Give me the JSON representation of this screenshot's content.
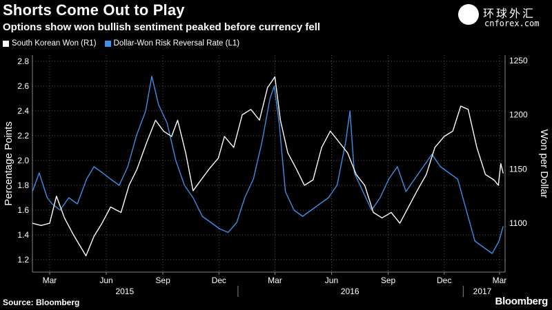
{
  "header": {
    "title": "Shorts Come Out to Play",
    "subtitle": "Options show won bullish sentiment peaked before currency fell"
  },
  "logo": {
    "chinese": "环球外汇",
    "english": "cnforex.com",
    "mark": ""
  },
  "footer": {
    "source": "Source: Bloomberg",
    "brand": "Bloomberg"
  },
  "colors": {
    "won": "#ffffff",
    "rr": "#3d8fe8",
    "grid": "#555555",
    "background": "#000000"
  },
  "chart_data": {
    "type": "line",
    "left_axis": {
      "label": "Percentage Points",
      "min": 1.1,
      "max": 2.85,
      "ticks": [
        1.2,
        1.4,
        1.6,
        1.8,
        2.0,
        2.2,
        2.4,
        2.6,
        2.8
      ],
      "tick_labels": [
        "1.2",
        "1.4",
        "1.6",
        "1.8",
        "2.0",
        "2.2",
        "2.4",
        "2.6",
        "2.8"
      ]
    },
    "right_axis": {
      "label": "Won per Dollar",
      "min": 1055,
      "max": 1255,
      "ticks": [
        1100,
        1150,
        1200,
        1250
      ],
      "tick_labels": [
        "1100",
        "1150",
        "1200",
        "1250"
      ]
    },
    "x_axis": {
      "start": "2015-02-01",
      "end": "2017-03-10",
      "month_ticks": [
        {
          "date": "2015-03-01",
          "label": "Mar"
        },
        {
          "date": "2015-06-01",
          "label": "Jun"
        },
        {
          "date": "2015-09-01",
          "label": "Sep"
        },
        {
          "date": "2015-12-01",
          "label": "Dec"
        },
        {
          "date": "2016-03-01",
          "label": "Mar"
        },
        {
          "date": "2016-06-01",
          "label": "Jun"
        },
        {
          "date": "2016-09-01",
          "label": "Sep"
        },
        {
          "date": "2016-12-01",
          "label": "Dec"
        },
        {
          "date": "2017-03-01",
          "label": "Mar"
        }
      ],
      "year_labels": [
        {
          "date": "2015-07-01",
          "label": "2015"
        },
        {
          "date": "2016-07-01",
          "label": "2016"
        },
        {
          "date": "2017-02-01",
          "label": "2017"
        }
      ],
      "year_dividers": [
        "2016-01-01",
        "2017-01-01"
      ]
    },
    "series": [
      {
        "name": "South Korean Won (R1)",
        "axis": "right",
        "points": [
          [
            "2015-02-01",
            1100
          ],
          [
            "2015-02-15",
            1098
          ],
          [
            "2015-03-01",
            1100
          ],
          [
            "2015-03-12",
            1125
          ],
          [
            "2015-03-25",
            1105
          ],
          [
            "2015-04-08",
            1090
          ],
          [
            "2015-04-29",
            1070
          ],
          [
            "2015-05-12",
            1088
          ],
          [
            "2015-05-25",
            1100
          ],
          [
            "2015-06-08",
            1115
          ],
          [
            "2015-06-25",
            1110
          ],
          [
            "2015-07-08",
            1135
          ],
          [
            "2015-07-21",
            1150
          ],
          [
            "2015-08-06",
            1175
          ],
          [
            "2015-08-20",
            1195
          ],
          [
            "2015-09-02",
            1185
          ],
          [
            "2015-09-15",
            1180
          ],
          [
            "2015-09-25",
            1195
          ],
          [
            "2015-10-08",
            1165
          ],
          [
            "2015-10-20",
            1130
          ],
          [
            "2015-11-02",
            1140
          ],
          [
            "2015-11-15",
            1150
          ],
          [
            "2015-11-30",
            1160
          ],
          [
            "2015-12-10",
            1180
          ],
          [
            "2015-12-25",
            1170
          ],
          [
            "2016-01-08",
            1200
          ],
          [
            "2016-01-22",
            1205
          ],
          [
            "2016-02-05",
            1195
          ],
          [
            "2016-02-18",
            1225
          ],
          [
            "2016-03-01",
            1235
          ],
          [
            "2016-03-10",
            1195
          ],
          [
            "2016-03-22",
            1165
          ],
          [
            "2016-04-05",
            1150
          ],
          [
            "2016-04-18",
            1135
          ],
          [
            "2016-05-02",
            1140
          ],
          [
            "2016-05-16",
            1170
          ],
          [
            "2016-05-30",
            1185
          ],
          [
            "2016-06-13",
            1175
          ],
          [
            "2016-06-27",
            1165
          ],
          [
            "2016-07-11",
            1145
          ],
          [
            "2016-07-25",
            1135
          ],
          [
            "2016-08-08",
            1110
          ],
          [
            "2016-08-22",
            1105
          ],
          [
            "2016-09-06",
            1110
          ],
          [
            "2016-09-20",
            1100
          ],
          [
            "2016-10-04",
            1115
          ],
          [
            "2016-10-18",
            1130
          ],
          [
            "2016-11-02",
            1145
          ],
          [
            "2016-11-16",
            1170
          ],
          [
            "2016-12-01",
            1180
          ],
          [
            "2016-12-15",
            1185
          ],
          [
            "2016-12-28",
            1208
          ],
          [
            "2017-01-09",
            1205
          ],
          [
            "2017-01-23",
            1170
          ],
          [
            "2017-02-06",
            1145
          ],
          [
            "2017-02-20",
            1140
          ],
          [
            "2017-02-27",
            1135
          ],
          [
            "2017-03-03",
            1155
          ],
          [
            "2017-03-07",
            1146
          ]
        ]
      },
      {
        "name": "Dollar-Won Risk Reversal Rate (L1)",
        "axis": "left",
        "points": [
          [
            "2015-02-01",
            1.75
          ],
          [
            "2015-02-12",
            1.9
          ],
          [
            "2015-02-25",
            1.7
          ],
          [
            "2015-03-05",
            1.65
          ],
          [
            "2015-03-18",
            1.6
          ],
          [
            "2015-04-01",
            1.7
          ],
          [
            "2015-04-15",
            1.65
          ],
          [
            "2015-04-30",
            1.85
          ],
          [
            "2015-05-12",
            1.95
          ],
          [
            "2015-05-26",
            1.9
          ],
          [
            "2015-06-08",
            1.85
          ],
          [
            "2015-06-22",
            1.8
          ],
          [
            "2015-07-06",
            1.95
          ],
          [
            "2015-07-20",
            2.2
          ],
          [
            "2015-08-04",
            2.4
          ],
          [
            "2015-08-14",
            2.68
          ],
          [
            "2015-08-25",
            2.45
          ],
          [
            "2015-09-08",
            2.3
          ],
          [
            "2015-09-22",
            2.0
          ],
          [
            "2015-10-06",
            1.8
          ],
          [
            "2015-10-20",
            1.7
          ],
          [
            "2015-11-04",
            1.55
          ],
          [
            "2015-11-18",
            1.5
          ],
          [
            "2015-12-02",
            1.45
          ],
          [
            "2015-12-16",
            1.42
          ],
          [
            "2015-12-30",
            1.5
          ],
          [
            "2016-01-12",
            1.7
          ],
          [
            "2016-01-26",
            1.85
          ],
          [
            "2016-02-09",
            2.15
          ],
          [
            "2016-02-22",
            2.5
          ],
          [
            "2016-02-29",
            2.6
          ],
          [
            "2016-03-08",
            2.3
          ],
          [
            "2016-03-18",
            1.75
          ],
          [
            "2016-04-01",
            1.6
          ],
          [
            "2016-04-15",
            1.55
          ],
          [
            "2016-04-29",
            1.6
          ],
          [
            "2016-05-13",
            1.65
          ],
          [
            "2016-05-27",
            1.7
          ],
          [
            "2016-06-10",
            1.8
          ],
          [
            "2016-06-24",
            2.15
          ],
          [
            "2016-07-01",
            2.4
          ],
          [
            "2016-07-08",
            1.9
          ],
          [
            "2016-07-22",
            1.75
          ],
          [
            "2016-08-05",
            1.6
          ],
          [
            "2016-08-19",
            1.7
          ],
          [
            "2016-09-02",
            1.85
          ],
          [
            "2016-09-16",
            1.95
          ],
          [
            "2016-09-30",
            1.75
          ],
          [
            "2016-10-14",
            1.85
          ],
          [
            "2016-10-28",
            1.95
          ],
          [
            "2016-11-11",
            2.05
          ],
          [
            "2016-11-25",
            1.95
          ],
          [
            "2016-12-09",
            1.9
          ],
          [
            "2016-12-23",
            1.85
          ],
          [
            "2017-01-06",
            1.6
          ],
          [
            "2017-01-20",
            1.35
          ],
          [
            "2017-02-03",
            1.3
          ],
          [
            "2017-02-17",
            1.25
          ],
          [
            "2017-02-28",
            1.35
          ],
          [
            "2017-03-07",
            1.47
          ]
        ]
      }
    ],
    "grid": true,
    "legend_position": "top-left"
  }
}
